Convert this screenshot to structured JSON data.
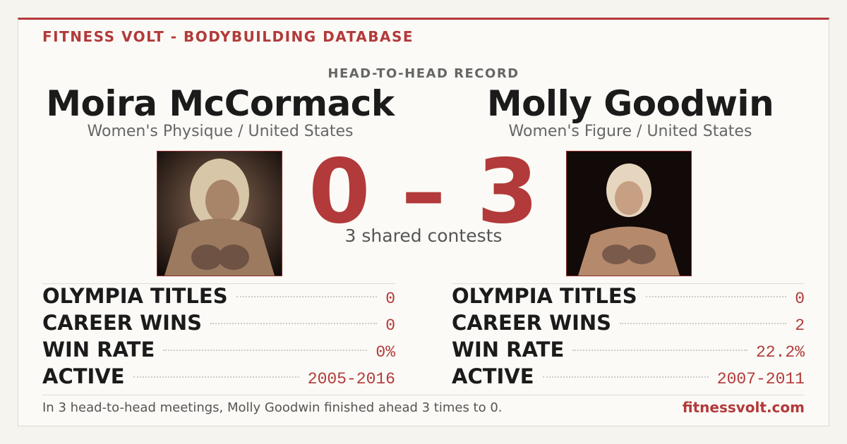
{
  "header": {
    "brand": "FITNESS VOLT - BODYBUILDING DATABASE",
    "section": "HEAD-TO-HEAD RECORD"
  },
  "athletes": [
    {
      "name": "Moira McCormack",
      "subtitle": "Women's Physique / United States",
      "stats": [
        {
          "label": "OLYMPIA TITLES",
          "value": "0"
        },
        {
          "label": "CAREER WINS",
          "value": "0"
        },
        {
          "label": "WIN RATE",
          "value": "0%"
        },
        {
          "label": "ACTIVE",
          "value": "2005-2016"
        }
      ]
    },
    {
      "name": "Molly Goodwin",
      "subtitle": "Women's Figure / United States",
      "stats": [
        {
          "label": "OLYMPIA TITLES",
          "value": "0"
        },
        {
          "label": "CAREER WINS",
          "value": "2"
        },
        {
          "label": "WIN RATE",
          "value": "22.2%"
        },
        {
          "label": "ACTIVE",
          "value": "2007-2011"
        }
      ]
    }
  ],
  "score": "0 – 3",
  "shared": "3 shared contests",
  "footer": {
    "summary": "In 3 head-to-head meetings, Molly Goodwin finished ahead 3 times to 0.",
    "site": "fitnessvolt.com"
  }
}
